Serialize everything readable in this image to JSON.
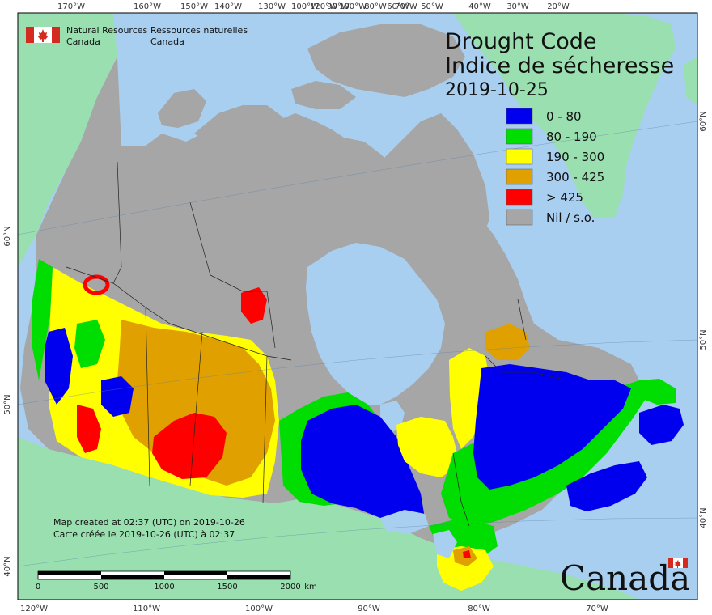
{
  "title": {
    "line1": "Drought Code",
    "line2": "Indice de sécheresse",
    "date": "2019-10-25"
  },
  "agency": {
    "en_line1": "Natural Resources",
    "en_line2": "Canada",
    "fr_line1": "Ressources naturelles",
    "fr_line2": "Canada"
  },
  "legend": [
    {
      "label": "0 - 80",
      "color": "#0000ee"
    },
    {
      "label": "80 - 190",
      "color": "#00dd00"
    },
    {
      "label": "190 - 300",
      "color": "#ffff00"
    },
    {
      "label": "300 - 425",
      "color": "#e0a000"
    },
    {
      "label": "> 425",
      "color": "#ff0000"
    },
    {
      "label": "Nil / s.o.",
      "color": "#a6a6a6"
    }
  ],
  "map_credit": {
    "en": "Map created at 02:37 (UTC) on 2019-10-26",
    "fr": "Carte créée le 2019-10-26 (UTC) à 02:37"
  },
  "scale_bar": {
    "labels": [
      "0",
      "500",
      "1000",
      "1500",
      "2000"
    ],
    "unit": "km"
  },
  "graticule": {
    "top": [
      "170°W",
      "160°W",
      "150°W",
      "140°W",
      "130°W",
      "120°W",
      "100°W",
      "90°W",
      "80°W",
      "70°W",
      "60°W",
      "50°W",
      "40°W",
      "30°W",
      "20°W"
    ],
    "bottom": [
      "120°W",
      "110°W",
      "100°W",
      "90°W",
      "80°W",
      "70°W"
    ],
    "left": [
      "60°N",
      "50°N",
      "40°N"
    ],
    "right": [
      "60°N",
      "50°N",
      "40°N"
    ]
  },
  "wordmark": "Canada",
  "colors": {
    "ocean": "#a8cff0",
    "foreign_land": "#9adfb0",
    "nil": "#a6a6a6",
    "lake": "#a8cff0"
  }
}
